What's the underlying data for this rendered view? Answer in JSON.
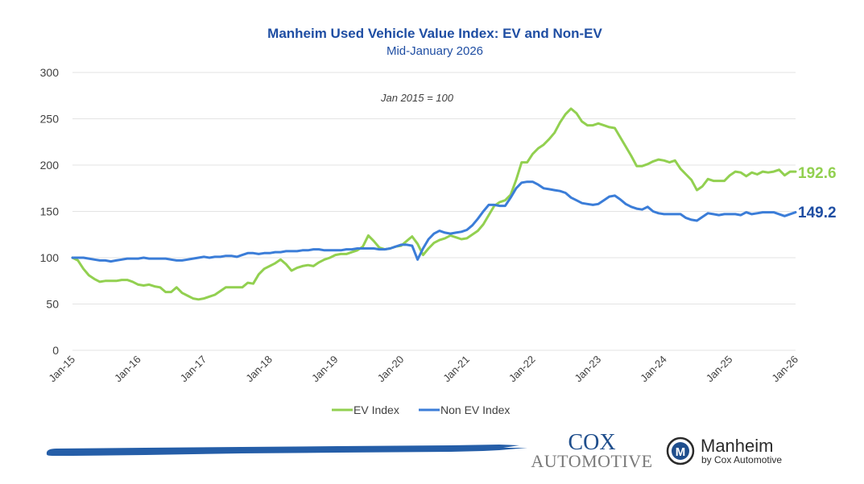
{
  "chart_data": {
    "type": "line",
    "title": "Manheim Used Vehicle Value Index: EV and Non-EV",
    "subtitle": "Mid-January 2026",
    "annotation": "Jan 2015 = 100",
    "xlabel": "",
    "ylabel": "",
    "ylim": [
      0,
      300
    ],
    "yticks": [
      0,
      50,
      100,
      150,
      200,
      250,
      300
    ],
    "grid": true,
    "legend_position": "bottom",
    "x_start": "Jan-15",
    "x_end": "Jan-26",
    "x_tick_labels": [
      "Jan-15",
      "Jan-16",
      "Jan-17",
      "Jan-18",
      "Jan-19",
      "Jan-20",
      "Jan-21",
      "Jan-22",
      "Jan-23",
      "Jan-24",
      "Jan-25",
      "Jan-26"
    ],
    "x_frequency": "monthly",
    "series": [
      {
        "name": "EV Index",
        "color": "#92d050",
        "end_label": "192.6",
        "values": [
          100,
          97,
          88,
          81,
          77,
          74,
          75,
          75,
          75,
          76,
          76,
          74,
          71,
          70,
          71,
          69,
          68,
          63,
          63,
          68,
          62,
          59,
          56,
          55,
          56,
          58,
          60,
          64,
          68,
          68,
          68,
          68,
          73,
          72,
          82,
          88,
          91,
          94,
          98,
          93,
          86,
          89,
          91,
          92,
          91,
          95,
          98,
          100,
          103,
          104,
          104,
          106,
          108,
          112,
          124,
          118,
          111,
          109,
          110,
          112,
          113,
          118,
          123,
          115,
          103,
          110,
          116,
          119,
          121,
          124,
          122,
          120,
          121,
          125,
          129,
          136,
          146,
          156,
          160,
          162,
          168,
          184,
          203,
          203,
          212,
          218,
          222,
          228,
          235,
          246,
          255,
          261,
          256,
          247,
          243,
          243,
          245,
          243,
          241,
          240,
          230,
          220,
          210,
          199,
          199,
          201,
          204,
          206,
          205,
          203,
          205,
          196,
          190,
          184,
          173,
          177,
          185,
          183,
          183,
          183,
          189,
          193,
          192,
          188,
          192,
          190,
          193,
          192,
          193,
          195,
          189,
          193,
          193
        ]
      },
      {
        "name": "Non EV Index",
        "color": "#3b7dd8",
        "end_label": "149.2",
        "values": [
          100,
          100,
          100,
          99,
          98,
          97,
          97,
          96,
          97,
          98,
          99,
          99,
          99,
          100,
          99,
          99,
          99,
          99,
          98,
          97,
          97,
          98,
          99,
          100,
          101,
          100,
          101,
          101,
          102,
          102,
          101,
          103,
          105,
          105,
          104,
          105,
          105,
          106,
          106,
          107,
          107,
          107,
          108,
          108,
          109,
          109,
          108,
          108,
          108,
          108,
          109,
          109,
          110,
          110,
          110,
          110,
          109,
          109,
          110,
          112,
          114,
          114,
          113,
          98,
          110,
          120,
          126,
          129,
          127,
          126,
          127,
          128,
          130,
          135,
          142,
          150,
          157,
          157,
          156,
          156,
          165,
          175,
          181,
          182,
          182,
          179,
          175,
          174,
          173,
          172,
          170,
          165,
          162,
          159,
          158,
          157,
          158,
          162,
          166,
          167,
          163,
          158,
          155,
          153,
          152,
          155,
          150,
          148,
          147,
          147,
          147,
          147,
          143,
          141,
          140,
          144,
          148,
          147,
          146,
          147,
          147,
          147,
          146,
          149,
          147,
          148,
          149,
          149,
          149,
          147,
          145,
          147,
          149
        ]
      }
    ]
  },
  "legend": {
    "items": [
      {
        "label": "EV Index",
        "color": "#92d050"
      },
      {
        "label": "Non EV Index",
        "color": "#3b7dd8"
      }
    ]
  },
  "end_labels": {
    "ev": {
      "text": "192.6",
      "color": "#92d050"
    },
    "non_ev": {
      "text": "149.2",
      "color": "#1f4ea3"
    }
  },
  "branding": {
    "brush_color": "#255ea8",
    "cox_line1": "COX",
    "cox_line2": "AUTOMOTIVE",
    "manheim_name": "Manheim",
    "manheim_sub": "by Cox Automotive",
    "manheim_logo_letter": "M"
  }
}
